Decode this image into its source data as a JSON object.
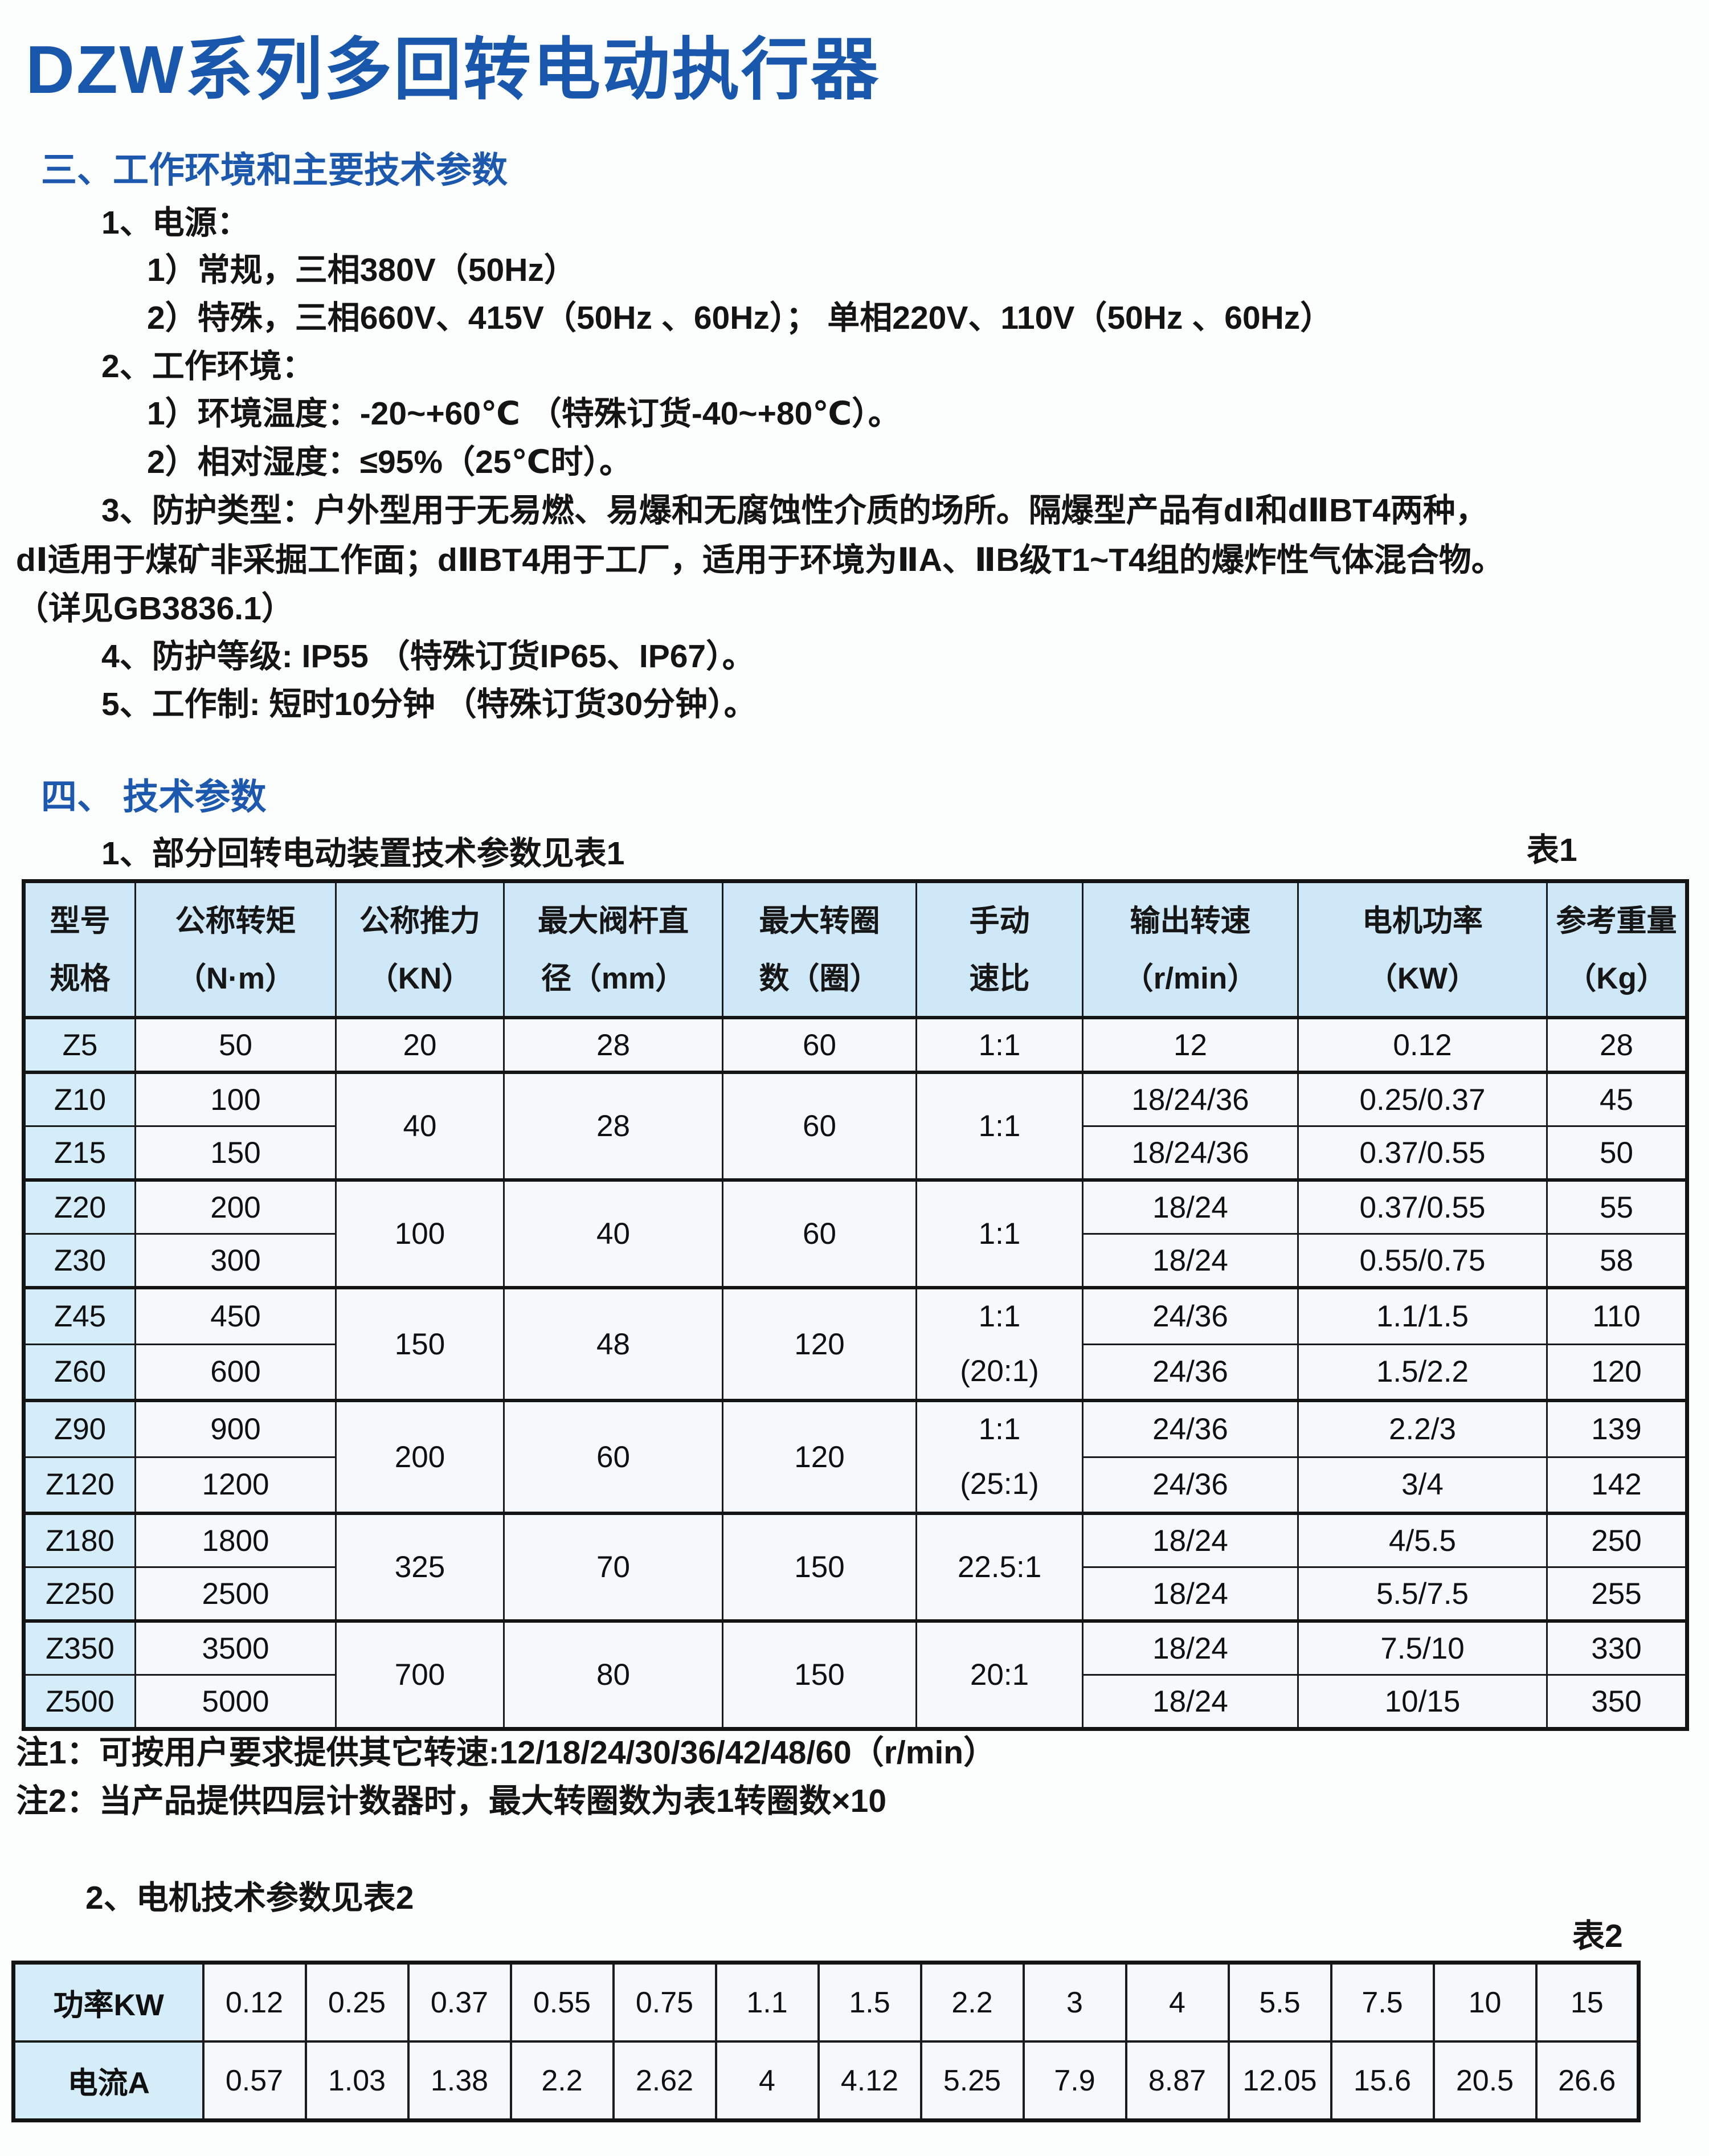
{
  "page_title": "DZW系列多回转电动执行器",
  "colors": {
    "title_blue": "#1857ab",
    "heading_blue": "#1c58ad",
    "table_header_bg": "#cfe8f7",
    "row_label_bg": "#d5ecf9",
    "cell_bg": "#f6f9fb",
    "border": "#1b1b1b",
    "text": "#141414"
  },
  "section3": {
    "heading": "三、工作环境和主要技术参数",
    "lines": [
      {
        "text": "1、电源："
      },
      {
        "text": "1）常规，三相380V（50Hz）"
      },
      {
        "text": "2）特殊，三相660V、415V（50Hz 、60Hz）； 单相220V、110V（50Hz 、60Hz）"
      },
      {
        "text": "2、工作环境："
      },
      {
        "text": "1）环境温度：-20~+60℃ （特殊订货-40~+80℃）。"
      },
      {
        "text": "2）相对湿度：≤95%（25℃时）。"
      },
      {
        "text": "3、防护类型：户外型用于无易燃、易爆和无腐蚀性介质的场所。隔爆型产品有dⅠ和dⅡBT4两种，"
      },
      {
        "text": "dⅠ适用于煤矿非采掘工作面；dⅡBT4用于工厂，适用于环境为ⅡA、ⅡB级T1~T4组的爆炸性气体混合物。"
      },
      {
        "text": "（详见GB3836.1）"
      },
      {
        "text": "4、防护等级: IP55 （特殊订货IP65、IP67）。"
      },
      {
        "text": "5、工作制: 短时10分钟 （特殊订货30分钟）。"
      }
    ]
  },
  "section4": {
    "heading": "四、 技术参数",
    "table1_caption": "1、部分回转电动装置技术参数见表1",
    "table1_label": "表1",
    "note1": "注1：可按用户要求提供其它转速:12/18/24/30/36/42/48/60（r/min）",
    "note2": "注2：当产品提供四层计数器时，最大转圈数为表1转圈数×10",
    "table2_caption": "2、电机技术参数见表2",
    "table2_label": "表2"
  },
  "table1": {
    "headers": [
      {
        "l1": "型号",
        "l2": "规格"
      },
      {
        "l1": "公称转矩",
        "l2": "（N·m）"
      },
      {
        "l1": "公称推力",
        "l2": "（KN）"
      },
      {
        "l1": "最大阀杆直",
        "l2": "径（mm）"
      },
      {
        "l1": "最大转圈",
        "l2": "数（圈）"
      },
      {
        "l1": "手动",
        "l2": "速比"
      },
      {
        "l1": "输出转速",
        "l2": "（r/min）"
      },
      {
        "l1": "电机功率",
        "l2": "（KW）"
      },
      {
        "l1": "参考重量",
        "l2": "（Kg）"
      }
    ],
    "rows": [
      {
        "group_start": true,
        "cells": [
          {
            "t": "Z5",
            "head": true
          },
          {
            "t": "50"
          },
          {
            "t": "20"
          },
          {
            "t": "28"
          },
          {
            "t": "60"
          },
          {
            "t": "1:1"
          },
          {
            "t": "12"
          },
          {
            "t": "0.12"
          },
          {
            "t": "28"
          }
        ]
      },
      {
        "group_start": true,
        "cells": [
          {
            "t": "Z10",
            "head": true
          },
          {
            "t": "100"
          },
          {
            "t": "40",
            "rs": 2
          },
          {
            "t": "28",
            "rs": 2
          },
          {
            "t": "60",
            "rs": 2
          },
          {
            "t": "1:1",
            "rs": 2
          },
          {
            "t": "18/24/36"
          },
          {
            "t": "0.25/0.37"
          },
          {
            "t": "45"
          }
        ]
      },
      {
        "group_start": false,
        "cells": [
          {
            "t": "Z15",
            "head": true
          },
          {
            "t": "150"
          },
          {
            "t": "18/24/36"
          },
          {
            "t": "0.37/0.55"
          },
          {
            "t": "50"
          }
        ]
      },
      {
        "group_start": true,
        "cells": [
          {
            "t": "Z20",
            "head": true
          },
          {
            "t": "200"
          },
          {
            "t": "100",
            "rs": 2
          },
          {
            "t": "40",
            "rs": 2
          },
          {
            "t": "60",
            "rs": 2
          },
          {
            "t": "1:1",
            "rs": 2
          },
          {
            "t": "18/24"
          },
          {
            "t": "0.37/0.55"
          },
          {
            "t": "55"
          }
        ]
      },
      {
        "group_start": false,
        "cells": [
          {
            "t": "Z30",
            "head": true
          },
          {
            "t": "300"
          },
          {
            "t": "18/24"
          },
          {
            "t": "0.55/0.75"
          },
          {
            "t": "58"
          }
        ]
      },
      {
        "group_start": true,
        "cells": [
          {
            "t": "Z45",
            "head": true
          },
          {
            "t": "450"
          },
          {
            "t": "150",
            "rs": 2
          },
          {
            "t": "48",
            "rs": 2
          },
          {
            "t": "120",
            "rs": 2
          },
          {
            "t": "1:1",
            "t2": "(20:1)",
            "rs": 2
          },
          {
            "t": "24/36"
          },
          {
            "t": "1.1/1.5"
          },
          {
            "t": "110"
          }
        ]
      },
      {
        "group_start": false,
        "cells": [
          {
            "t": "Z60",
            "head": true
          },
          {
            "t": "600"
          },
          {
            "t": "24/36"
          },
          {
            "t": "1.5/2.2"
          },
          {
            "t": "120"
          }
        ]
      },
      {
        "group_start": true,
        "cells": [
          {
            "t": "Z90",
            "head": true
          },
          {
            "t": "900"
          },
          {
            "t": "200",
            "rs": 2
          },
          {
            "t": "60",
            "rs": 2
          },
          {
            "t": "120",
            "rs": 2
          },
          {
            "t": "1:1",
            "t2": "(25:1)",
            "rs": 2
          },
          {
            "t": "24/36"
          },
          {
            "t": "2.2/3"
          },
          {
            "t": "139"
          }
        ]
      },
      {
        "group_start": false,
        "cells": [
          {
            "t": "Z120",
            "head": true
          },
          {
            "t": "1200"
          },
          {
            "t": "24/36"
          },
          {
            "t": "3/4"
          },
          {
            "t": "142"
          }
        ]
      },
      {
        "group_start": true,
        "cells": [
          {
            "t": "Z180",
            "head": true
          },
          {
            "t": "1800"
          },
          {
            "t": "325",
            "rs": 2
          },
          {
            "t": "70",
            "rs": 2
          },
          {
            "t": "150",
            "rs": 2
          },
          {
            "t": "22.5:1",
            "rs": 2
          },
          {
            "t": "18/24"
          },
          {
            "t": "4/5.5"
          },
          {
            "t": "250"
          }
        ]
      },
      {
        "group_start": false,
        "cells": [
          {
            "t": "Z250",
            "head": true
          },
          {
            "t": "2500"
          },
          {
            "t": "18/24"
          },
          {
            "t": "5.5/7.5"
          },
          {
            "t": "255"
          }
        ]
      },
      {
        "group_start": true,
        "cells": [
          {
            "t": "Z350",
            "head": true
          },
          {
            "t": "3500"
          },
          {
            "t": "700",
            "rs": 2
          },
          {
            "t": "80",
            "rs": 2
          },
          {
            "t": "150",
            "rs": 2
          },
          {
            "t": "20:1",
            "rs": 2
          },
          {
            "t": "18/24"
          },
          {
            "t": "7.5/10"
          },
          {
            "t": "330"
          }
        ]
      },
      {
        "group_start": false,
        "cells": [
          {
            "t": "Z500",
            "head": true
          },
          {
            "t": "5000"
          },
          {
            "t": "18/24"
          },
          {
            "t": "10/15"
          },
          {
            "t": "350"
          }
        ]
      }
    ]
  },
  "table2": {
    "rows": [
      {
        "label": "功率KW",
        "values": [
          "0.12",
          "0.25",
          "0.37",
          "0.55",
          "0.75",
          "1.1",
          "1.5",
          "2.2",
          "3",
          "4",
          "5.5",
          "7.5",
          "10",
          "15"
        ]
      },
      {
        "label": "电流A",
        "values": [
          "0.57",
          "1.03",
          "1.38",
          "2.2",
          "2.62",
          "4",
          "4.12",
          "5.25",
          "7.9",
          "8.87",
          "12.05",
          "15.6",
          "20.5",
          "26.6"
        ]
      }
    ]
  }
}
